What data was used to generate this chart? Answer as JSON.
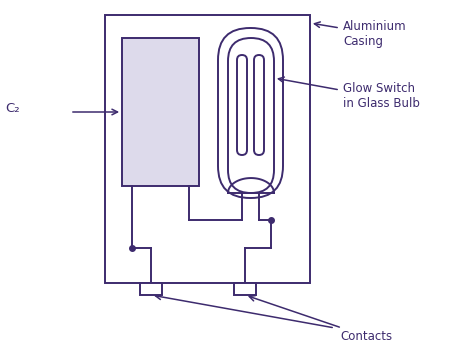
{
  "line_color": "#3d2b6e",
  "bg_color": "#ffffff",
  "fill_color_capacitor": "#dddaeb",
  "labels": {
    "aluminium_casing": "Aluminium\nCasing",
    "glow_switch": "Glow Switch\nin Glass Bulb",
    "c2": "C₂",
    "contacts": "Contacts"
  },
  "figsize": [
    4.74,
    3.56
  ],
  "dpi": 100
}
